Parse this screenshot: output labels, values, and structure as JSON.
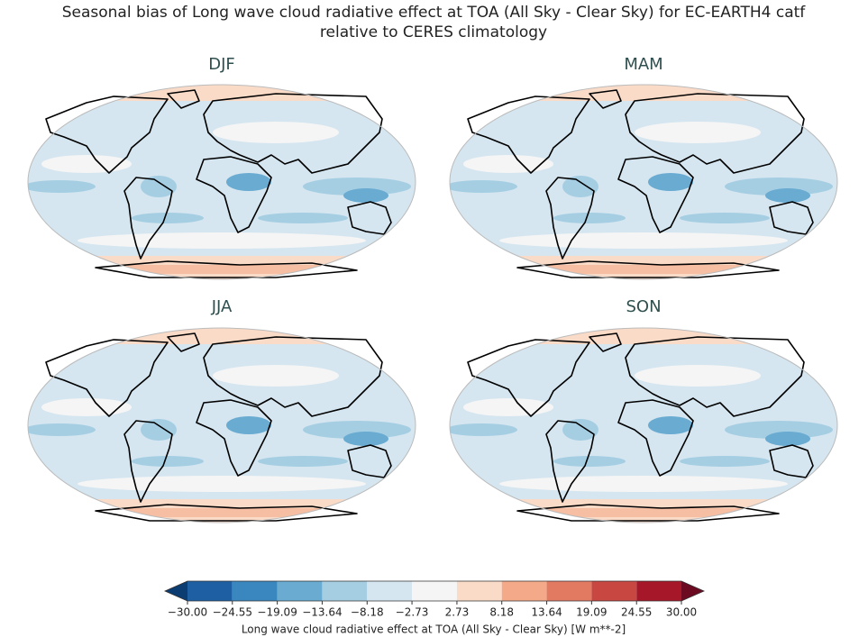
{
  "chart_data": {
    "type": "contour-map",
    "title": [
      "Seasonal bias of Long wave cloud radiative effect at TOA (All Sky - Clear Sky) for EC-EARTH4 catf",
      "relative to CERES climatology"
    ],
    "panels": [
      "DJF",
      "MAM",
      "JJA",
      "SON"
    ],
    "colorbar": {
      "label": "Long wave cloud radiative effect at TOA (All Sky - Clear Sky) [W m**-2]",
      "xlim": [
        -30,
        30
      ],
      "xticks": [
        {
          "value": -30,
          "label": "−30.00"
        },
        {
          "value": -24.55,
          "label": "−24.55"
        },
        {
          "value": -19.09,
          "label": "−19.09"
        },
        {
          "value": -13.64,
          "label": "−13.64"
        },
        {
          "value": -8.18,
          "label": "−8.18"
        },
        {
          "value": -2.73,
          "label": "−2.73"
        },
        {
          "value": 2.73,
          "label": "2.73"
        },
        {
          "value": 8.18,
          "label": "8.18"
        },
        {
          "value": 13.64,
          "label": "13.64"
        },
        {
          "value": 19.09,
          "label": "19.09"
        },
        {
          "value": 24.55,
          "label": "24.55"
        },
        {
          "value": 30,
          "label": "30.00"
        }
      ],
      "colors": [
        "#1d5fa2",
        "#3a87c0",
        "#6aabd2",
        "#a5cee3",
        "#d5e6f0",
        "#f5f5f5",
        "#fadbc8",
        "#f4aa88",
        "#e27a62",
        "#c94741",
        "#a51729"
      ],
      "under_color": "#0b3c72",
      "over_color": "#6c0a22"
    }
  }
}
